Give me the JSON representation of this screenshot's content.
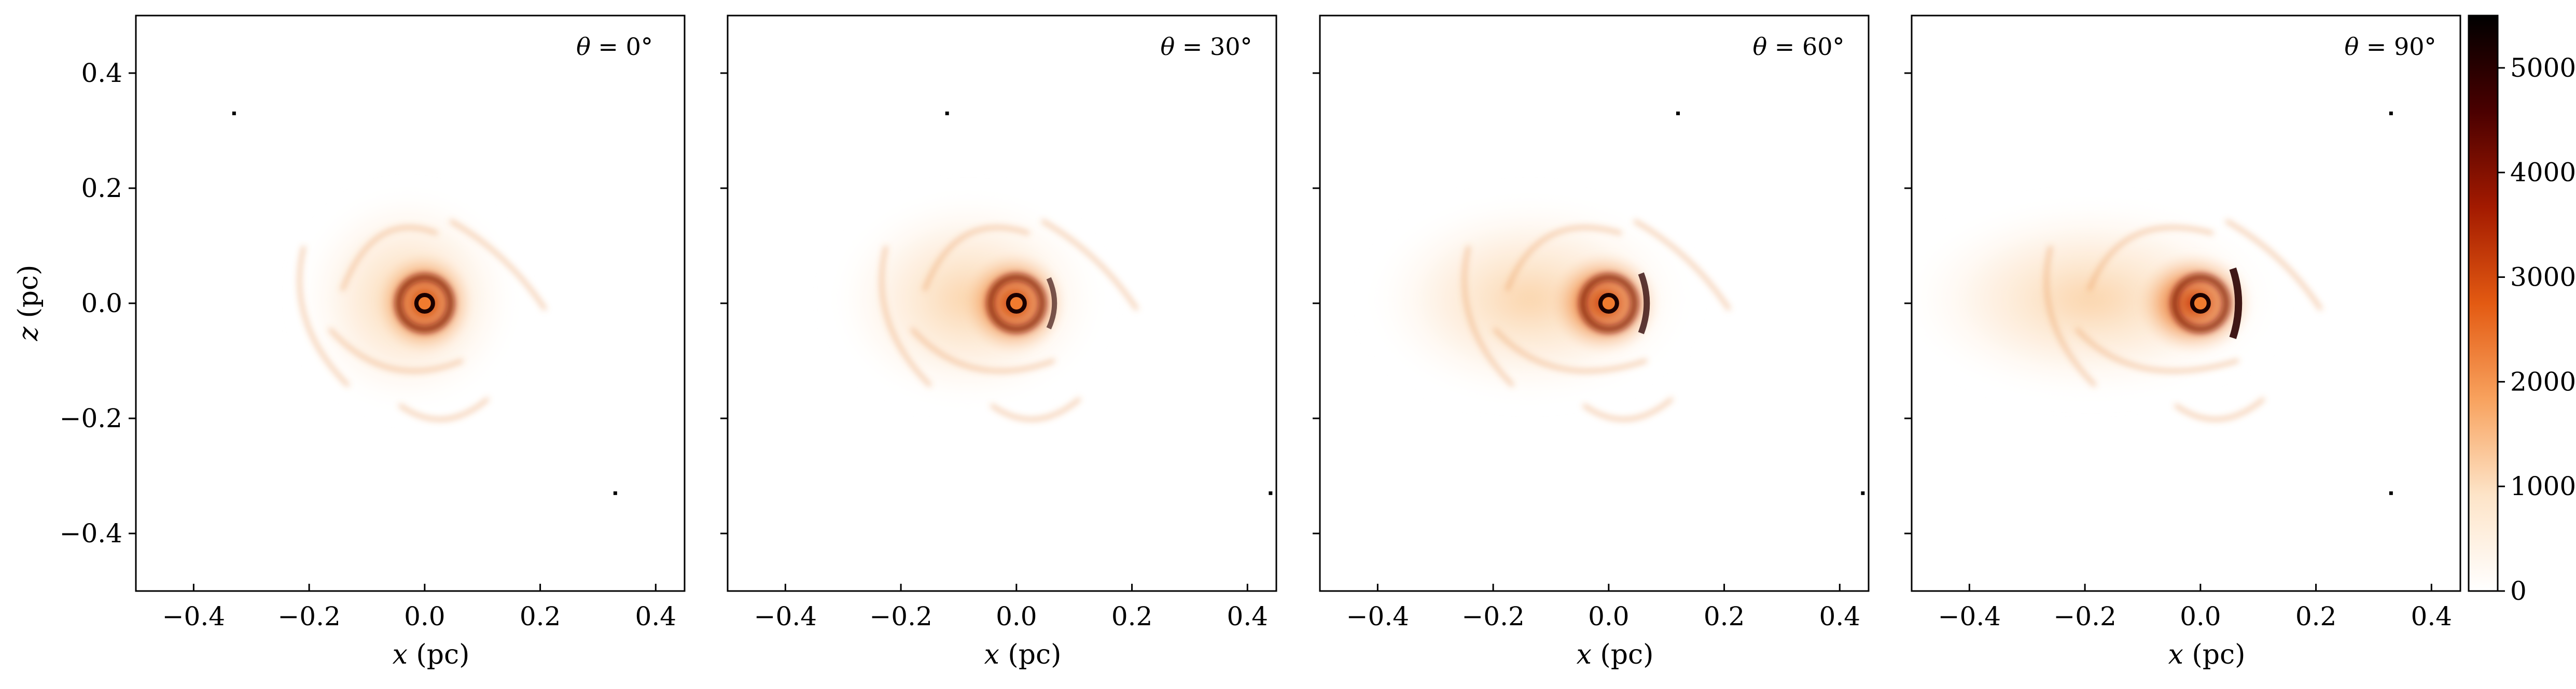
{
  "chart_data": {
    "type": "heatmap",
    "colormap": "gist_heat_r",
    "colormap_stops": [
      "#ffffff",
      "#fde4c8",
      "#f8a25e",
      "#e35a12",
      "#a31a00",
      "#4a0000",
      "#000000"
    ],
    "x_ticks": [
      "−0.4",
      "−0.2",
      "0.0",
      "0.2",
      "0.4"
    ],
    "y_ticks": [
      "0.4",
      "0.2",
      "0.0",
      "−0.2",
      "−0.4"
    ],
    "x_tick_values": [
      -0.4,
      -0.2,
      0.0,
      0.2,
      0.4
    ],
    "y_tick_values": [
      0.4,
      0.2,
      0.0,
      -0.2,
      -0.4
    ],
    "xlim": [
      -0.5,
      0.45
    ],
    "ylim": [
      -0.5,
      0.5
    ],
    "xlabel_var": "x",
    "xlabel_unit": " (pc)",
    "ylabel_var": "z",
    "ylabel_unit": " (pc)",
    "colorbar": {
      "range": [
        0,
        5500
      ],
      "ticks": [
        "0",
        "1000",
        "2000",
        "3000",
        "4000",
        "5000"
      ],
      "tick_values": [
        0,
        1000,
        2000,
        3000,
        4000,
        5000
      ]
    },
    "panels": [
      {
        "theta_symbol": "θ",
        "theta_text": " = 0°",
        "angle": 0,
        "markers": [
          [
            -0.33,
            0.33
          ],
          [
            0.33,
            -0.33
          ]
        ]
      },
      {
        "theta_symbol": "θ",
        "theta_text": " = 30°",
        "angle": 30,
        "markers": [
          [
            -0.12,
            0.33
          ],
          [
            0.44,
            -0.33
          ]
        ]
      },
      {
        "theta_symbol": "θ",
        "theta_text": " = 60°",
        "angle": 60,
        "markers": [
          [
            0.12,
            0.33
          ],
          [
            0.44,
            -0.33
          ]
        ]
      },
      {
        "theta_symbol": "θ",
        "theta_text": " = 90°",
        "angle": 90,
        "markers": [
          [
            0.33,
            0.33
          ],
          [
            0.33,
            -0.33
          ]
        ]
      }
    ]
  }
}
